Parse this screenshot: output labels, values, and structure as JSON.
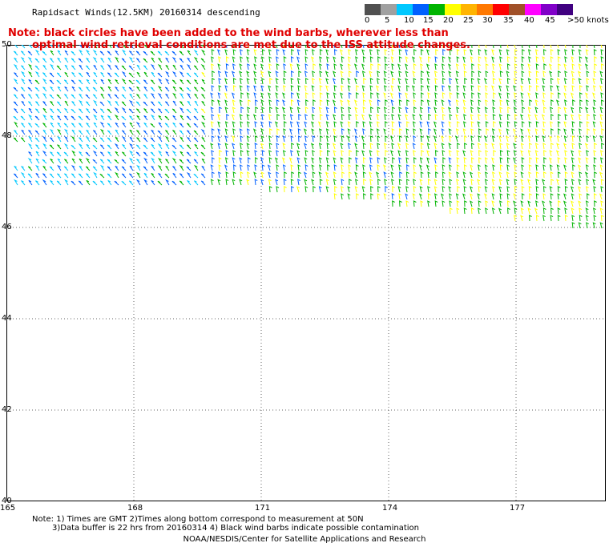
{
  "title": "Rapidsact Winds(12.5KM) 20160314 descending",
  "note_line1": "Note: black circles have been added to the wind barbs, wherever less than",
  "note_line2": "optimal wind retrieval conditions are met due to the ISS attitude changes.",
  "legend": {
    "labels": [
      "0",
      "5",
      "10",
      "15",
      "20",
      "25",
      "30",
      "35",
      "40",
      "45",
      ">50 knots"
    ],
    "colors": [
      "#505050",
      "#a0a0a0",
      "#00c8ff",
      "#0060ff",
      "#00b400",
      "#ffff00",
      "#ffb400",
      "#ff7800",
      "#ff0000",
      "#a05028",
      "#ff00ff",
      "#8000c8",
      "#400080"
    ]
  },
  "axes": {
    "lat_labels": [
      "50",
      "48",
      "46",
      "44",
      "42",
      "40"
    ],
    "lon_labels": [
      "165",
      "168",
      "171",
      "174",
      "177"
    ]
  },
  "bottom_notes": {
    "line1": "Note: 1) Times are GMT 2)Times along bottom correspond to measurement at 50N",
    "line2": "3)Data buffer is 22 hrs from 20160314 4) Black wind barbs indicate possible contamination"
  },
  "credit": "NOAA/NESDIS/Center for Satellite Applications and Research"
}
